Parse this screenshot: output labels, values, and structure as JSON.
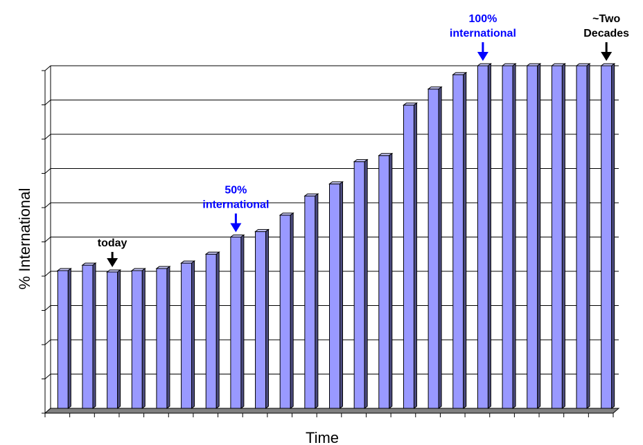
{
  "chart_data": {
    "type": "bar",
    "xlabel": "Time",
    "ylabel": "% International",
    "ylim": [
      0,
      100
    ],
    "yticks": [
      0,
      10,
      20,
      30,
      40,
      50,
      60,
      70,
      80,
      90,
      100
    ],
    "grid": true,
    "bar_color": "#9999ff",
    "bar_style": "3d",
    "categories": [
      "",
      "",
      "",
      "",
      "",
      "",
      "",
      "",
      "",
      "",
      "",
      "",
      "",
      "",
      "",
      "",
      "",
      "",
      "",
      "",
      "",
      "",
      ""
    ],
    "values": [
      40.2,
      41.8,
      39.8,
      40.2,
      40.8,
      42.4,
      45.0,
      50.0,
      51.6,
      56.4,
      62.0,
      65.5,
      72.0,
      73.8,
      88.5,
      93.2,
      97.4,
      100,
      100,
      100,
      100,
      100,
      100
    ],
    "annotations": [
      {
        "lines": [
          "today"
        ],
        "bar_index": 2,
        "color": "#000000"
      },
      {
        "lines": [
          "50%",
          "international"
        ],
        "bar_index": 7,
        "color": "#0000ff"
      },
      {
        "lines": [
          "100%",
          "international"
        ],
        "bar_index": 17,
        "color": "#0000ff"
      },
      {
        "lines": [
          "~Two",
          "Decades"
        ],
        "bar_index": 22,
        "color": "#000000"
      }
    ]
  }
}
